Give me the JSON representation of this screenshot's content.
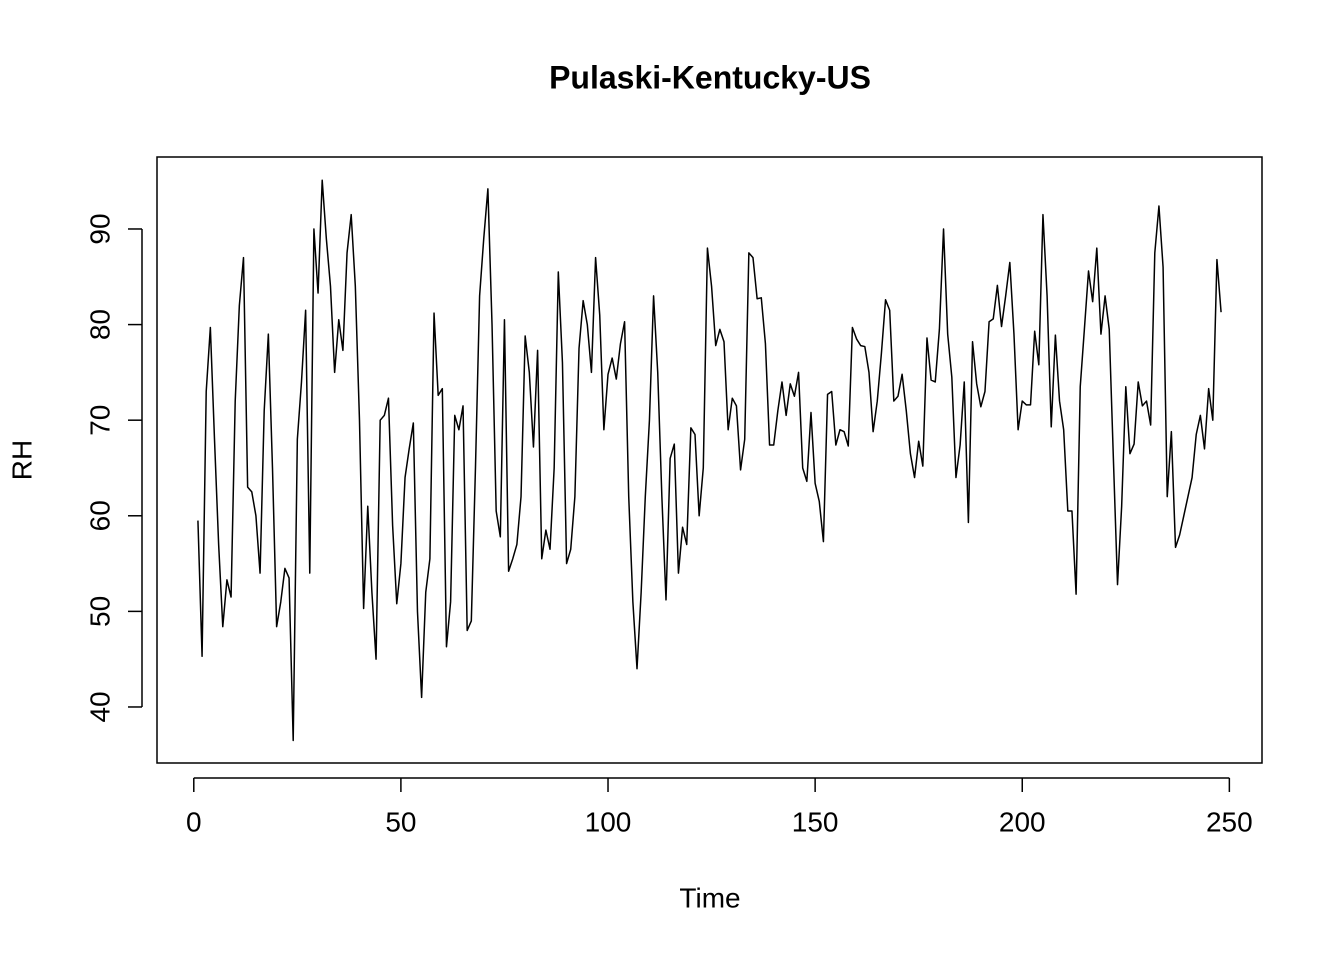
{
  "chart_data": {
    "type": "line",
    "title": "Pulaski-Kentucky-US",
    "x_label": "Time",
    "y_label": "RH",
    "x": [
      1,
      2,
      3,
      4,
      5,
      6,
      7,
      8,
      9,
      10,
      11,
      12,
      13,
      14,
      15,
      16,
      17,
      18,
      19,
      20,
      21,
      22,
      23,
      24,
      25,
      26,
      27,
      28,
      29,
      30,
      31,
      32,
      33,
      34,
      35,
      36,
      37,
      38,
      39,
      40,
      41,
      42,
      43,
      44,
      45,
      46,
      47,
      48,
      49,
      50,
      51,
      52,
      53,
      54,
      55,
      56,
      57,
      58,
      59,
      60,
      61,
      62,
      63,
      64,
      65,
      66,
      67,
      68,
      69,
      70,
      71,
      72,
      73,
      74,
      75,
      76,
      77,
      78,
      79,
      80,
      81,
      82,
      83,
      84,
      85,
      86,
      87,
      88,
      89,
      90,
      91,
      92,
      93,
      94,
      95,
      96,
      97,
      98,
      99,
      100,
      101,
      102,
      103,
      104,
      105,
      106,
      107,
      108,
      109,
      110,
      111,
      112,
      113,
      114,
      115,
      116,
      117,
      118,
      119,
      120,
      121,
      122,
      123,
      124,
      125,
      126,
      127,
      128,
      129,
      130,
      131,
      132,
      133,
      134,
      135,
      136,
      137,
      138,
      139,
      140,
      141,
      142,
      143,
      144,
      145,
      146,
      147,
      148,
      149,
      150,
      151,
      152,
      153,
      154,
      155,
      156,
      157,
      158,
      159,
      160,
      161,
      162,
      163,
      164,
      165,
      166,
      167,
      168,
      169,
      170,
      171,
      172,
      173,
      174,
      175,
      176,
      177,
      178,
      179,
      180,
      181,
      182,
      183,
      184,
      185,
      186,
      187,
      188,
      189,
      190,
      191,
      192,
      193,
      194,
      195,
      196,
      197,
      198,
      199,
      200,
      201,
      202,
      203,
      204,
      205,
      206,
      207,
      208,
      209,
      210,
      211,
      212,
      213,
      214,
      215,
      216,
      217,
      218,
      219,
      220,
      221,
      222,
      223,
      224,
      225,
      226,
      227,
      228,
      229,
      230,
      231,
      232,
      233,
      234,
      235,
      236,
      237,
      238,
      239,
      240,
      241,
      242,
      243,
      244,
      245,
      246,
      247,
      248
    ],
    "series": [
      {
        "color": "#000000",
        "values": [
          59.5,
          45.3,
          73,
          79.7,
          68,
          57,
          48.4,
          53.3,
          51.5,
          72,
          82,
          87,
          63,
          62.5,
          60,
          54,
          71,
          79,
          65,
          48.4,
          51,
          54.5,
          53.5,
          36.5,
          68,
          74,
          81.5,
          54,
          90,
          83.3,
          95.1,
          89,
          84,
          75,
          80.5,
          77.3,
          87.5,
          91.5,
          84,
          70,
          50.3,
          61,
          52,
          45,
          70,
          70.5,
          72.3,
          59,
          50.8,
          55,
          64,
          67,
          69.7,
          50,
          41,
          52,
          55.5,
          81.2,
          72.6,
          73.3,
          46.3,
          51,
          70.5,
          69,
          71.5,
          48,
          49,
          65,
          83,
          89,
          94.2,
          80,
          60.5,
          57.8,
          80.5,
          54.2,
          55.5,
          57,
          62,
          78.8,
          75,
          67.2,
          77.3,
          55.5,
          58.5,
          56.5,
          65,
          85.5,
          76,
          55,
          56.5,
          62,
          77.5,
          82.5,
          80,
          75,
          87,
          81,
          69,
          74.8,
          76.5,
          74.3,
          78,
          80.3,
          62,
          51,
          44,
          52,
          62,
          70,
          83,
          75,
          62,
          51.2,
          66,
          67.5,
          54,
          58.8,
          57,
          69.2,
          68.5,
          60,
          65,
          88,
          84,
          77.8,
          79.5,
          78.2,
          69,
          72.3,
          71.5,
          64.8,
          68,
          87.5,
          87,
          82.7,
          82.8,
          78,
          67.4,
          67.4,
          71,
          74,
          70.5,
          73.8,
          72.5,
          75,
          65,
          63.6,
          70.8,
          63.4,
          61.5,
          57.3,
          72.7,
          73,
          67.4,
          69,
          68.8,
          67.3,
          79.7,
          78.5,
          77.8,
          77.7,
          75,
          68.8,
          72,
          77,
          82.6,
          81.5,
          72,
          72.5,
          74.8,
          71,
          66.5,
          64,
          67.8,
          65.2,
          78.6,
          74.2,
          74,
          79.5,
          90,
          79,
          74.5,
          64,
          67.4,
          74,
          59.3,
          78.2,
          73.8,
          71.4,
          73,
          80.3,
          80.6,
          84.1,
          79.8,
          83,
          86.5,
          79,
          69,
          72,
          71.6,
          71.6,
          79.3,
          75.8,
          91.5,
          83,
          69.3,
          78.9,
          72,
          69,
          60.5,
          60.5,
          51.8,
          73.5,
          79.5,
          85.6,
          82.4,
          88,
          79,
          83,
          79.5,
          66,
          52.8,
          61,
          73.5,
          66.5,
          67.5,
          74,
          71.5,
          72,
          69.5,
          87.5,
          92.4,
          86,
          62,
          68.8,
          56.7,
          58,
          60,
          62,
          64,
          68.5,
          70.5,
          67,
          73.3,
          70,
          86.8,
          81.3
        ]
      }
    ],
    "xlim": [
      -8.88,
      257.88
    ],
    "ylim": [
      34.14,
      97.53
    ],
    "xticks": [
      0,
      50,
      100,
      150,
      200,
      250
    ],
    "yticks": [
      40,
      50,
      60,
      70,
      80,
      90
    ]
  }
}
